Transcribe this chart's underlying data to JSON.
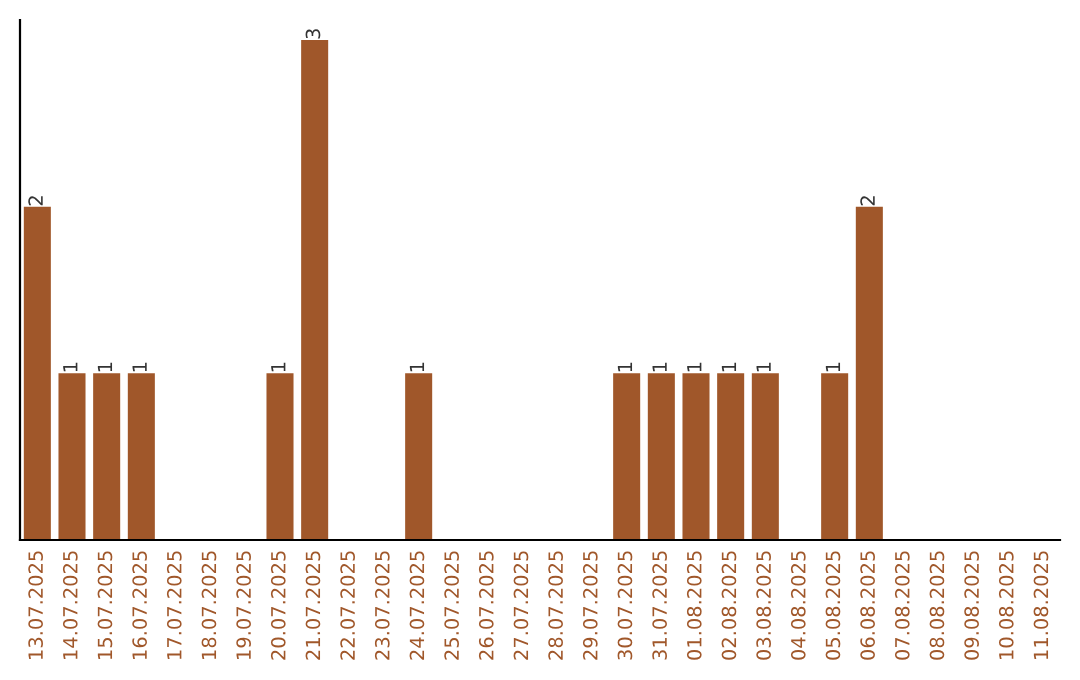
{
  "chart_data": {
    "type": "bar",
    "categories": [
      "13.07.2025",
      "14.07.2025",
      "15.07.2025",
      "16.07.2025",
      "17.07.2025",
      "18.07.2025",
      "19.07.2025",
      "20.07.2025",
      "21.07.2025",
      "22.07.2025",
      "23.07.2025",
      "24.07.2025",
      "25.07.2025",
      "26.07.2025",
      "27.07.2025",
      "28.07.2025",
      "29.07.2025",
      "30.07.2025",
      "31.07.2025",
      "01.08.2025",
      "02.08.2025",
      "03.08.2025",
      "04.08.2025",
      "05.08.2025",
      "06.08.2025",
      "07.08.2025",
      "08.08.2025",
      "09.08.2025",
      "10.08.2025",
      "11.08.2025"
    ],
    "values": [
      2,
      1,
      1,
      1,
      0,
      0,
      0,
      1,
      3,
      0,
      0,
      1,
      0,
      0,
      0,
      0,
      0,
      1,
      1,
      1,
      1,
      1,
      0,
      1,
      2,
      0,
      0,
      0,
      0,
      0
    ],
    "value_labels": [
      "2",
      "1",
      "1",
      "1",
      null,
      null,
      null,
      "1",
      "3",
      null,
      null,
      "1",
      null,
      null,
      null,
      null,
      null,
      "1",
      "1",
      "1",
      "1",
      "1",
      null,
      "1",
      "2",
      null,
      null,
      null,
      null,
      null
    ],
    "color": "#a0572a",
    "grid": false,
    "legend": false,
    "tick_labels": "x"
  }
}
